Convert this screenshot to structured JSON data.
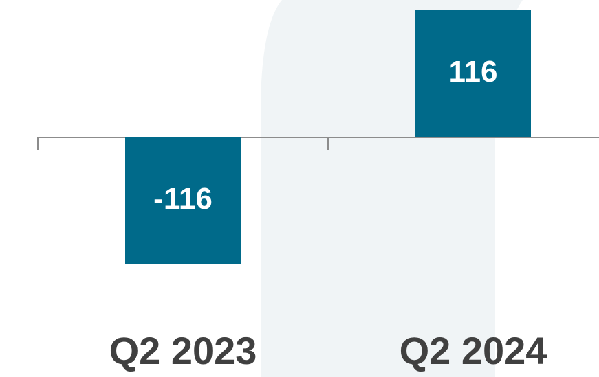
{
  "chart_data": {
    "type": "bar",
    "categories": [
      "Q2 2023",
      "Q2 2024"
    ],
    "values": [
      -116,
      116
    ],
    "color": "#006a8a"
  }
}
